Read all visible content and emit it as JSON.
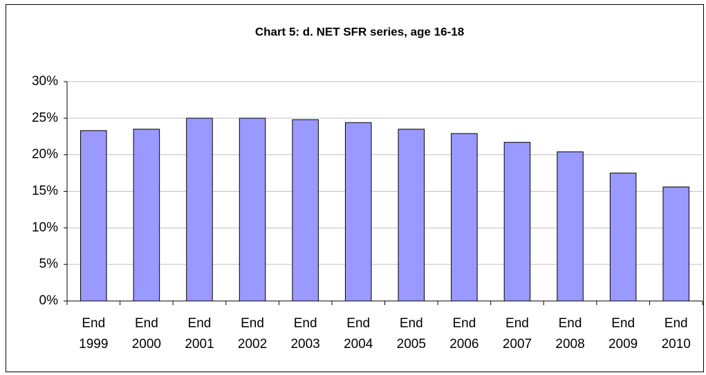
{
  "chart_data": {
    "type": "bar",
    "title": "Chart  5: d. NET SFR series, age 16-18",
    "categories": [
      "End 1999",
      "End 2000",
      "End 2001",
      "End 2002",
      "End 2003",
      "End 2004",
      "End 2005",
      "End 2006",
      "End 2007",
      "End 2008",
      "End 2009",
      "End 2010"
    ],
    "values": [
      23.3,
      23.5,
      25.0,
      25.0,
      24.8,
      24.4,
      23.5,
      22.9,
      21.7,
      20.4,
      17.5,
      15.6
    ],
    "color": "#9999ff",
    "ylim": [
      0,
      30
    ],
    "yticks": [
      {
        "value": 0,
        "label": "0%"
      },
      {
        "value": 5,
        "label": "5%"
      },
      {
        "value": 10,
        "label": "10%"
      },
      {
        "value": 15,
        "label": "15%"
      },
      {
        "value": 20,
        "label": "20%"
      },
      {
        "value": 25,
        "label": "25%"
      },
      {
        "value": 30,
        "label": "30%"
      }
    ],
    "grid": true
  }
}
